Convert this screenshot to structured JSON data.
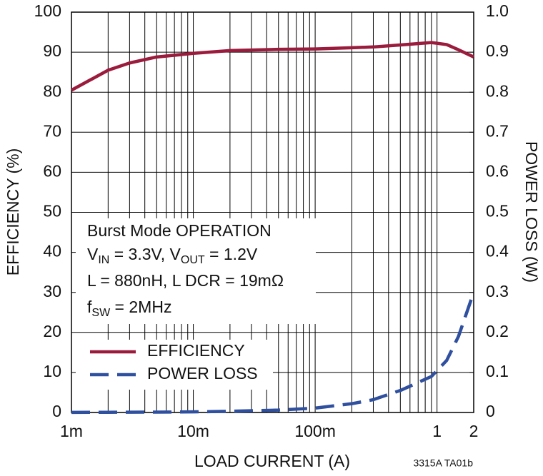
{
  "chart_data": {
    "type": "line",
    "xlabel": "LOAD CURRENT (A)",
    "ylabel": "EFFICIENCY (%)",
    "y2label": "POWER LOSS (W)",
    "xscale": "log",
    "grid": true,
    "legend": "lower left",
    "xlim": [
      0.001,
      2
    ],
    "xticks": [
      {
        "value": 0.001,
        "label": "1m"
      },
      {
        "value": 0.01,
        "label": "10m"
      },
      {
        "value": 0.1,
        "label": "100m"
      },
      1,
      2
    ],
    "ylim": [
      0,
      100
    ],
    "yticks": [
      0,
      10,
      20,
      30,
      40,
      50,
      60,
      70,
      80,
      90,
      100
    ],
    "y2lim": [
      0,
      1
    ],
    "y2ticks": [
      0,
      0.1,
      0.2,
      0.3,
      0.4,
      0.5,
      0.6,
      0.7,
      0.8,
      0.9,
      {
        "value": 1,
        "label": "1.0"
      }
    ],
    "x": [
      0.001,
      0.002,
      0.003,
      0.005,
      0.01,
      0.02,
      0.05,
      0.1,
      0.2,
      0.3,
      0.5,
      0.9,
      1.2,
      1.5,
      2
    ],
    "series": [
      {
        "name": "EFFICIENCY",
        "color": "#9b1b3c",
        "line_style": "solid",
        "values": [
          80.5,
          85.5,
          87.3,
          88.8,
          89.7,
          90.4,
          90.7,
          90.8,
          91.1,
          91.3,
          91.8,
          92.4,
          91.9,
          90.6,
          88.8
        ]
      },
      {
        "name": "POWER LOSS",
        "color": "#2f4f9f",
        "line_style": "dashed",
        "axis": "y2",
        "values": [
          0.0003,
          0.0005,
          0.0007,
          0.001,
          0.0015,
          0.003,
          0.006,
          0.011,
          0.022,
          0.032,
          0.055,
          0.09,
          0.13,
          0.19,
          0.3
        ]
      }
    ],
    "annotation": [
      [
        {
          "text": "Burst Mode OPERATION"
        }
      ],
      [
        {
          "text": "V"
        },
        {
          "text": "IN",
          "sub": true
        },
        {
          "text": " = 3.3V, V"
        },
        {
          "text": "OUT",
          "sub": true
        },
        {
          "text": " = 1.2V"
        }
      ],
      [
        {
          "text": "L = 880nH, L DCR = 19mΩ"
        }
      ],
      [
        {
          "text": "f"
        },
        {
          "text": "SW",
          "sub": true
        },
        {
          "text": " = 2MHz"
        }
      ]
    ],
    "footnote": "3315A TA01b"
  }
}
